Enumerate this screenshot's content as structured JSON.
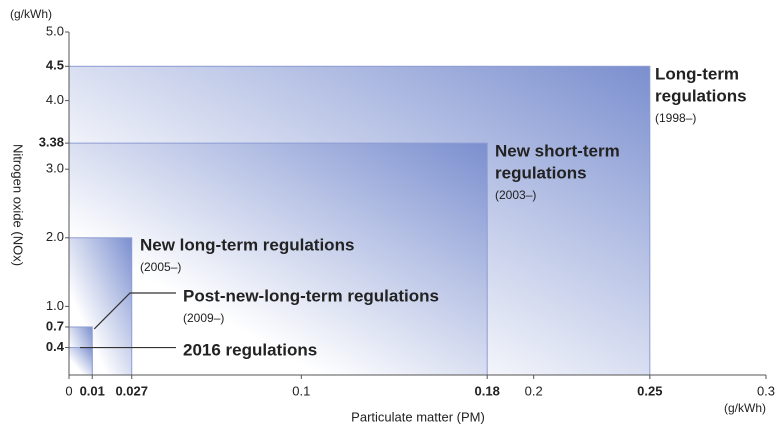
{
  "chart_data": {
    "type": "regulation-boxes",
    "y_unit": "(g/kWh)",
    "x_unit": "(g/kWh)",
    "xlabel": "Particulate matter (PM)",
    "ylabel": "Nitrogen oxide (NOx)",
    "xlim": [
      0,
      0.3
    ],
    "ylim": [
      0,
      5
    ],
    "xticks": [
      0,
      0.01,
      0.027,
      0.1,
      0.18,
      0.2,
      0.25,
      0.3
    ],
    "yticks": [
      0.4,
      0.7,
      {
        "value": 1,
        "label": "1.0"
      },
      {
        "value": 2,
        "label": "2.0"
      },
      {
        "value": 3,
        "label": "3.0"
      },
      3.38,
      {
        "value": 4,
        "label": "4.0"
      },
      4.5,
      {
        "value": 5,
        "label": "5.0"
      }
    ],
    "color": "#7b8fcf",
    "series": [
      {
        "name_lines": [
          "Long-term",
          "regulations"
        ],
        "period": "(1998–)",
        "pm": 0.25,
        "nox": 4.5
      },
      {
        "name_lines": [
          "New short-term",
          "regulations"
        ],
        "period": "(2003–)",
        "pm": 0.18,
        "nox": 3.38
      },
      {
        "name_lines": [
          "New long-term regulations"
        ],
        "period": "(2005–)",
        "pm": 0.027,
        "nox": 2
      },
      {
        "name_lines": [
          "Post-new-long-term regulations"
        ],
        "period": "(2009–)",
        "pm": 0.01,
        "nox": 0.7
      },
      {
        "name_lines": [
          "2016 regulations"
        ],
        "pm": 0.01,
        "nox": 0.4
      }
    ]
  }
}
